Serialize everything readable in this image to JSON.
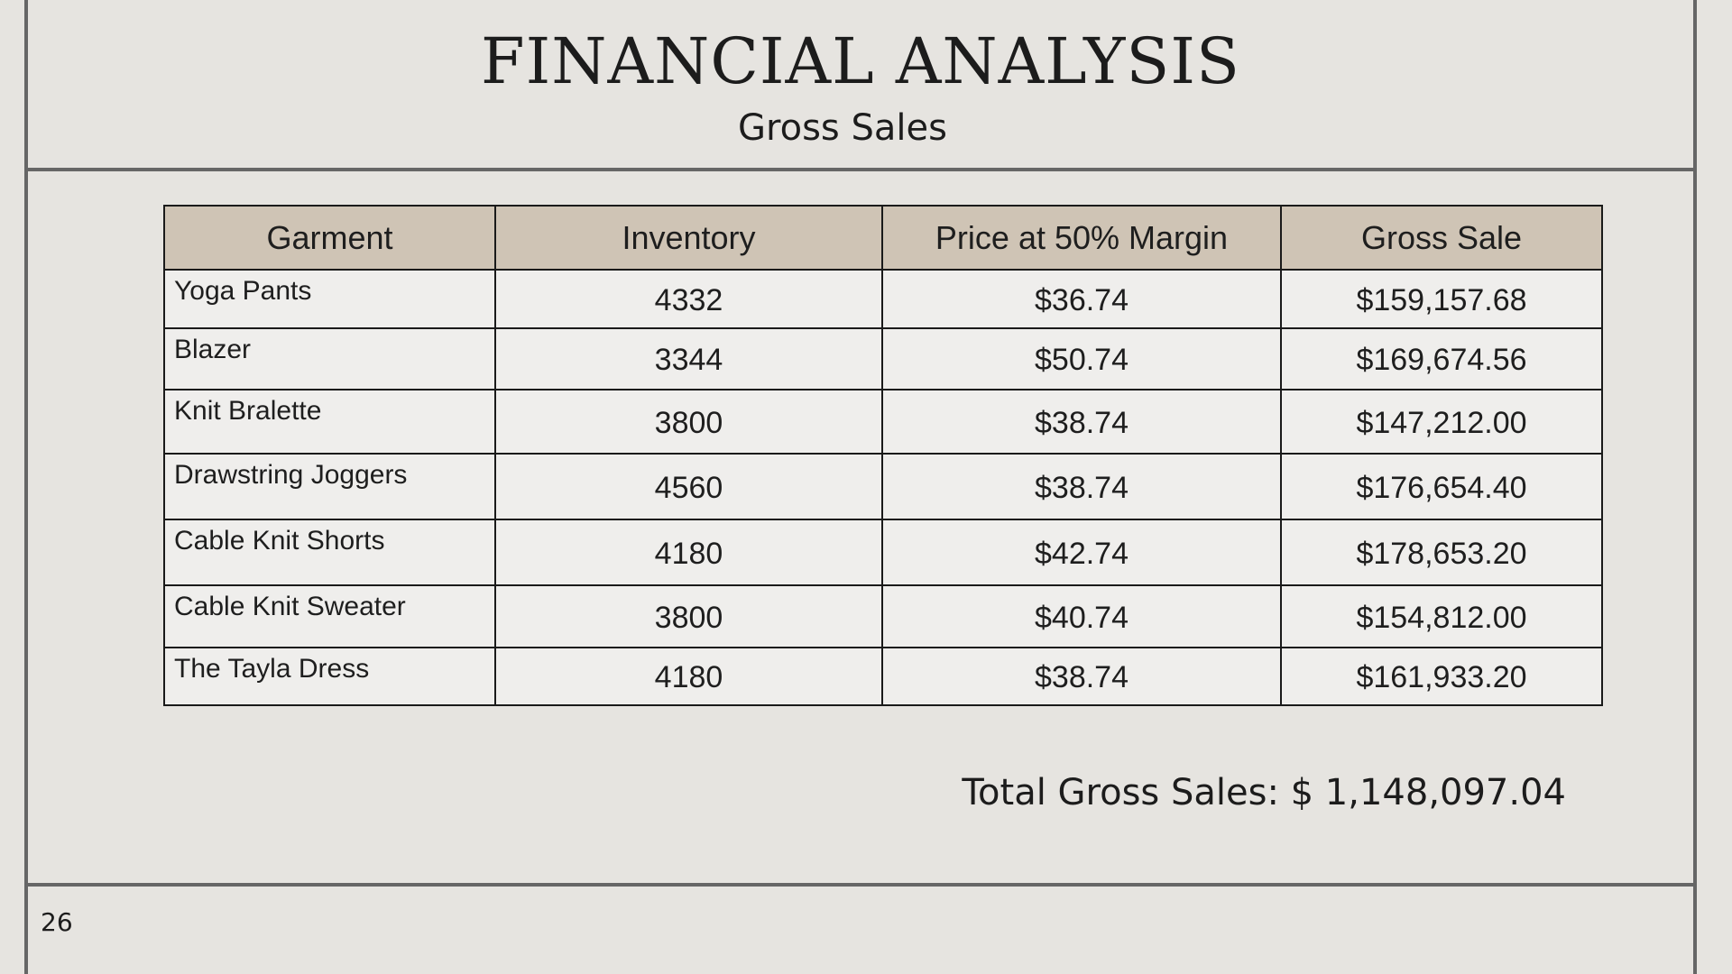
{
  "title": "FINANCIAL ANALYSIS",
  "subtitle": "Gross Sales",
  "table": {
    "headers": [
      "Garment",
      "Inventory",
      "Price at 50% Margin",
      "Gross Sale"
    ],
    "rows": [
      {
        "garment": "Yoga Pants",
        "inventory": "4332",
        "price": "$36.74",
        "gross": "$159,157.68"
      },
      {
        "garment": "Blazer",
        "inventory": "3344",
        "price": "$50.74",
        "gross": "$169,674.56"
      },
      {
        "garment": "Knit Bralette",
        "inventory": "3800",
        "price": "$38.74",
        "gross": "$147,212.00"
      },
      {
        "garment": "Drawstring Joggers",
        "inventory": "4560",
        "price": "$38.74",
        "gross": "$176,654.40"
      },
      {
        "garment": "Cable Knit Shorts",
        "inventory": "4180",
        "price": "$42.74",
        "gross": "$178,653.20"
      },
      {
        "garment": "Cable Knit Sweater",
        "inventory": "3800",
        "price": "$40.74",
        "gross": "$154,812.00"
      },
      {
        "garment": "The Tayla Dress",
        "inventory": "4180",
        "price": "$38.74",
        "gross": "$161,933.20"
      }
    ]
  },
  "total": "Total Gross Sales: $ 1,148,097.04",
  "page_number": "26",
  "colors": {
    "background": "#e6e4e0",
    "header_fill": "#cfc4b5",
    "cell_fill": "#efeeec",
    "frame_lines": "#666666"
  }
}
